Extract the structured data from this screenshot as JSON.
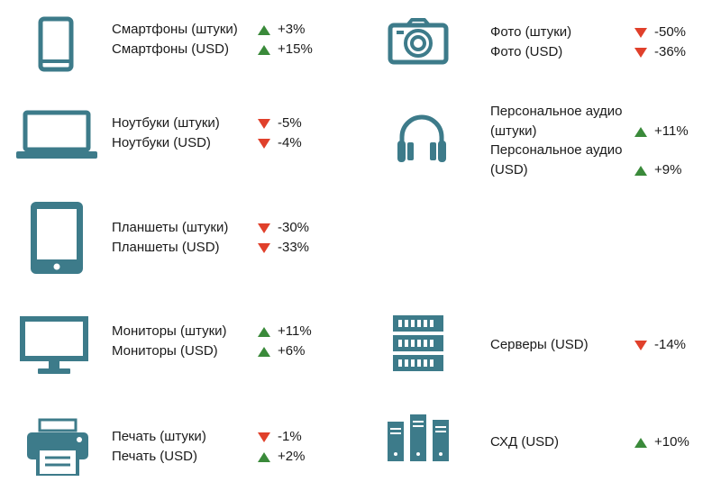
{
  "colors": {
    "icon": "#3d7b8a",
    "up": "#3a8a3a",
    "down": "#e0402b"
  },
  "items": [
    {
      "icon": "smartphone-icon",
      "label1": "Смартфоны (штуки)",
      "value1": "+3%",
      "dir1": "up",
      "label2": "Смартфоны (USD)",
      "value2": "+15%",
      "dir2": "up"
    },
    {
      "icon": "laptop-icon",
      "label1": "Ноутбуки (штуки)",
      "value1": "-5%",
      "dir1": "down",
      "label2": "Ноутбуки (USD)",
      "value2": "-4%",
      "dir2": "down"
    },
    {
      "icon": "tablet-icon",
      "label1": "Планшеты (штуки)",
      "value1": "-30%",
      "dir1": "down",
      "label2": "Планшеты (USD)",
      "value2": "-33%",
      "dir2": "down"
    },
    {
      "icon": "monitor-icon",
      "label1": "Мониторы (штуки)",
      "value1": "+11%",
      "dir1": "up",
      "label2": "Мониторы (USD)",
      "value2": "+6%",
      "dir2": "up"
    },
    {
      "icon": "printer-icon",
      "label1": "Печать (штуки)",
      "value1": "-1%",
      "dir1": "down",
      "label2": "Печать (USD)",
      "value2": "+2%",
      "dir2": "up"
    },
    {
      "icon": "camera-icon",
      "label1": "Фото (штуки)",
      "value1": "-50%",
      "dir1": "down",
      "label2": "Фото (USD)",
      "value2": "-36%",
      "dir2": "down"
    },
    {
      "icon": "headphones-icon",
      "label1a": "Персональное аудио",
      "label1b": "(штуки)",
      "value1": "+11%",
      "dir1": "up",
      "label2a": "Персональное аудио",
      "label2b": "(USD)",
      "value2": "+9%",
      "dir2": "up"
    },
    {
      "icon": "server-icon",
      "label1": "Серверы (USD)",
      "value1": "-14%",
      "dir1": "down"
    },
    {
      "icon": "storage-icon",
      "label1": "СХД (USD)",
      "value1": "+10%",
      "dir1": "up"
    }
  ]
}
